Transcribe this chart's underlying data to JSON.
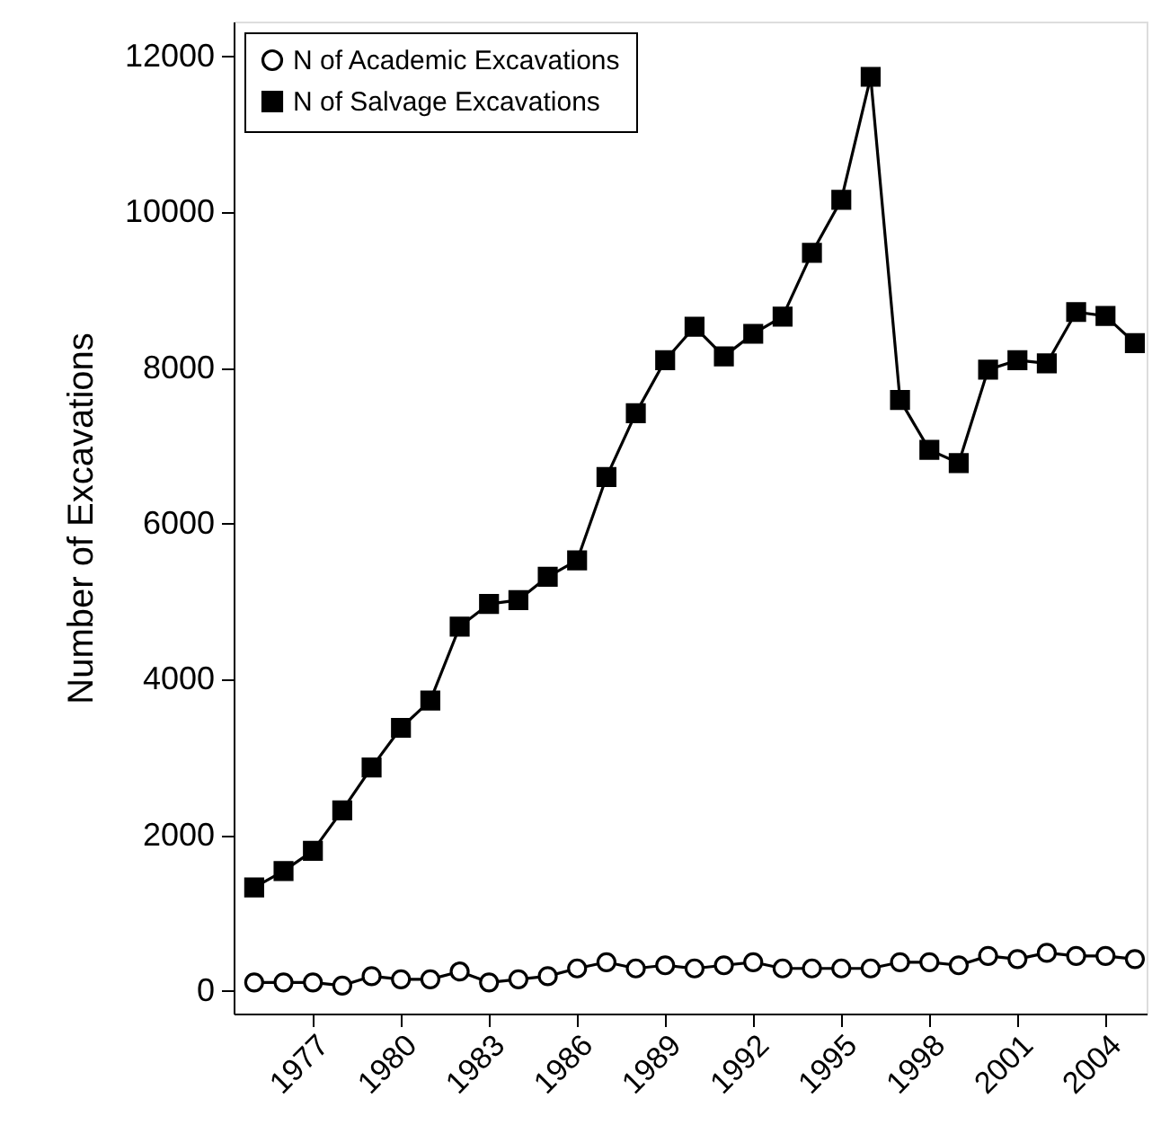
{
  "chart_data": {
    "type": "line",
    "ylabel": "Number of Excavations",
    "x": [
      1975,
      1976,
      1977,
      1978,
      1979,
      1980,
      1981,
      1982,
      1983,
      1984,
      1985,
      1986,
      1987,
      1988,
      1989,
      1990,
      1991,
      1992,
      1993,
      1994,
      1995,
      1996,
      1997,
      1998,
      1999,
      2000,
      2001,
      2002,
      2003,
      2004,
      2005
    ],
    "series": [
      {
        "name": "N of Academic Excavations",
        "color": "#000000",
        "marker": "circle",
        "values": [
          110,
          110,
          110,
          70,
          190,
          150,
          150,
          250,
          110,
          150,
          190,
          290,
          370,
          290,
          330,
          290,
          330,
          370,
          290,
          290,
          290,
          290,
          370,
          370,
          330,
          450,
          410,
          490,
          450,
          450,
          410
        ]
      },
      {
        "name": "N of Salvage Excavations",
        "color": "#000000",
        "marker": "square",
        "values": [
          1330,
          1540,
          1800,
          2320,
          2870,
          3380,
          3730,
          4680,
          4970,
          5020,
          5320,
          5530,
          6600,
          7420,
          8100,
          8530,
          8150,
          8440,
          8660,
          9480,
          10160,
          11740,
          7590,
          6950,
          6780,
          7980,
          8100,
          8060,
          8720,
          8670,
          8320
        ]
      }
    ],
    "xlim": [
      1974.3,
      2005.4
    ],
    "xticks": [
      1977,
      1980,
      1983,
      1986,
      1989,
      1992,
      1995,
      1998,
      2001,
      2004
    ],
    "ylim": [
      -290,
      12450
    ],
    "yticks": [
      0,
      2000,
      4000,
      6000,
      8000,
      10000,
      12000
    ],
    "grid": false,
    "legend": "top left",
    "line_style": "solid"
  }
}
